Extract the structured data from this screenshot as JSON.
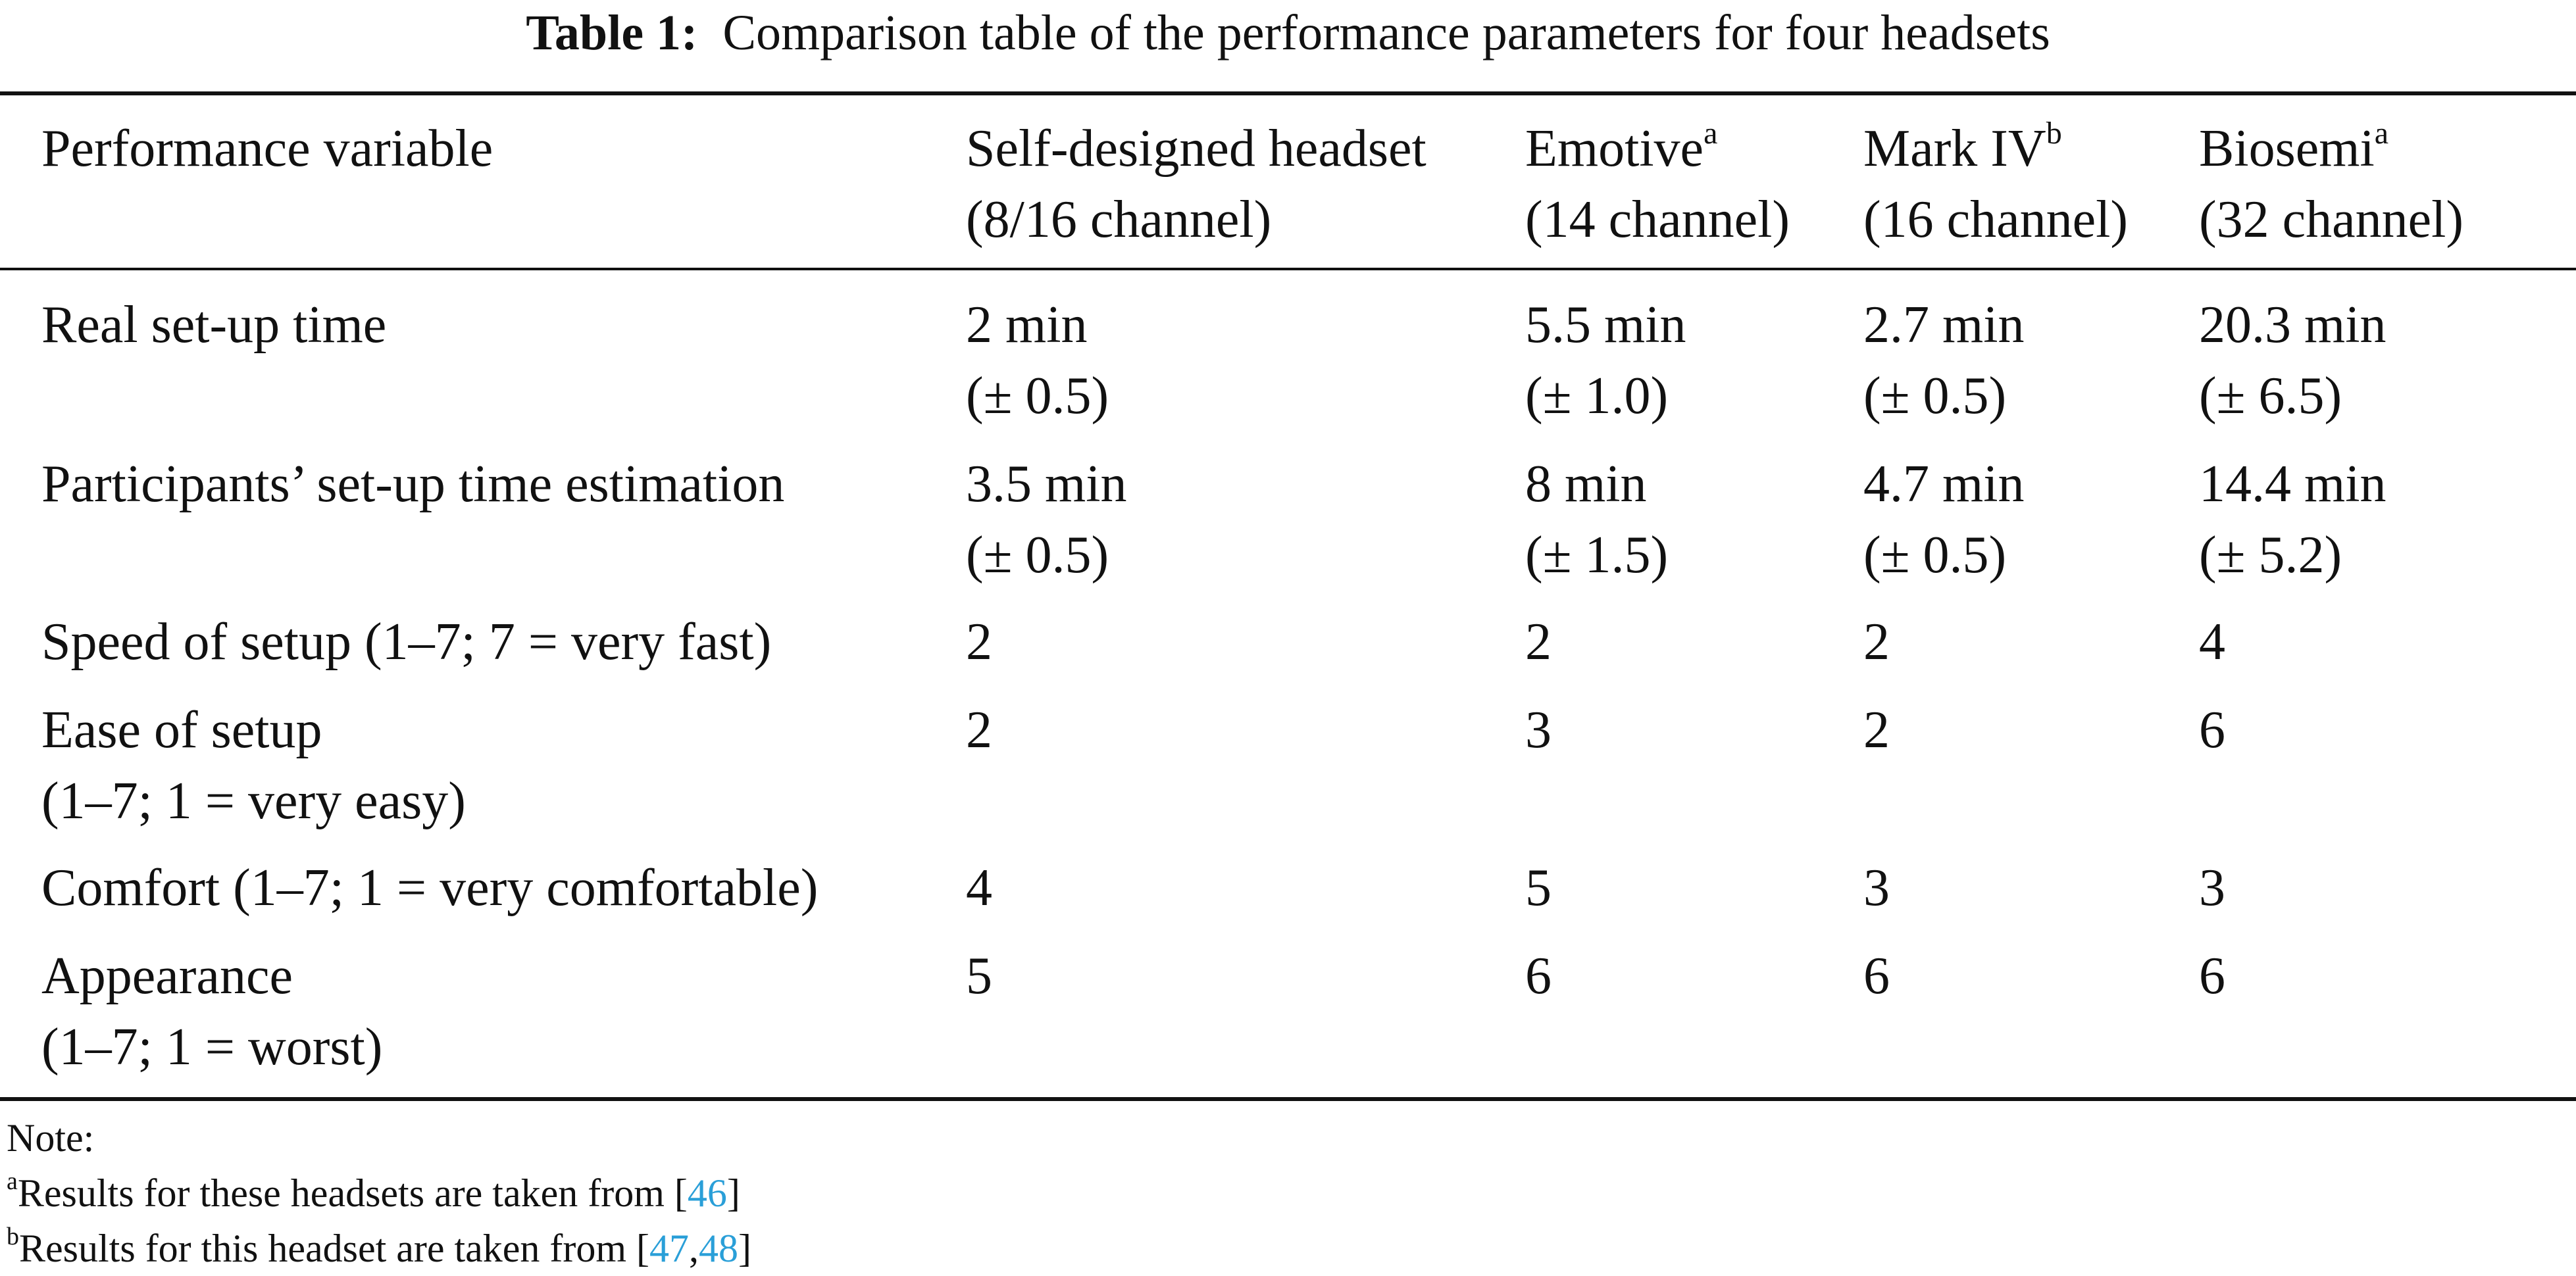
{
  "caption": {
    "label": "Table 1:",
    "text": "Comparison table of the performance parameters for four headsets"
  },
  "header": [
    {
      "line1": "Performance variable",
      "sup": "",
      "line2": ""
    },
    {
      "line1": "Self-designed headset",
      "sup": "",
      "line2": "(8/16 channel)"
    },
    {
      "line1": "Emotive",
      "sup": "a",
      "line2": "(14 channel)"
    },
    {
      "line1": "Mark IV",
      "sup": "b",
      "line2": "(16 channel)"
    },
    {
      "line1": "Biosemi",
      "sup": "a",
      "line2": "(32 channel)"
    }
  ],
  "rows": [
    {
      "variable": [
        "Real set-up time",
        ""
      ],
      "values": [
        [
          "2 min",
          "(± 0.5)"
        ],
        [
          "5.5 min",
          "(± 1.0)"
        ],
        [
          "2.7 min",
          "(± 0.5)"
        ],
        [
          "20.3 min",
          "(± 6.5)"
        ]
      ]
    },
    {
      "variable": [
        "Participants’ set-up time estimation",
        ""
      ],
      "values": [
        [
          "3.5 min",
          "(± 0.5)"
        ],
        [
          "8 min",
          "(± 1.5)"
        ],
        [
          "4.7 min",
          "(± 0.5)"
        ],
        [
          "14.4 min",
          "(± 5.2)"
        ]
      ]
    },
    {
      "variable": [
        "Speed of setup (1–7; 7 = very fast)",
        ""
      ],
      "values": [
        [
          "2",
          ""
        ],
        [
          "2",
          ""
        ],
        [
          "2",
          ""
        ],
        [
          "4",
          ""
        ]
      ]
    },
    {
      "variable": [
        "Ease of setup",
        "(1–7; 1 = very easy)"
      ],
      "values": [
        [
          "2",
          ""
        ],
        [
          "3",
          ""
        ],
        [
          "2",
          ""
        ],
        [
          "6",
          ""
        ]
      ]
    },
    {
      "variable": [
        "Comfort (1–7; 1 = very comfortable)",
        ""
      ],
      "values": [
        [
          "4",
          ""
        ],
        [
          "5",
          ""
        ],
        [
          "3",
          ""
        ],
        [
          "3",
          ""
        ]
      ]
    },
    {
      "variable": [
        "Appearance",
        "(1–7; 1 = worst)"
      ],
      "values": [
        [
          "5",
          ""
        ],
        [
          "6",
          ""
        ],
        [
          "6",
          ""
        ],
        [
          "6",
          ""
        ]
      ]
    }
  ],
  "notes": {
    "title": "Note:",
    "a": {
      "sup": "a",
      "text": "Results for these headsets are taken from [",
      "refs": [
        "46"
      ],
      "close": "]"
    },
    "b": {
      "sup": "b",
      "text": "Results for this headset are taken from [",
      "refs": [
        "47",
        "48"
      ],
      "sep": ",",
      "close": "]"
    }
  },
  "colors": {
    "text": "#111111",
    "reference_link": "#2a9fd8",
    "background": "#ffffff"
  }
}
